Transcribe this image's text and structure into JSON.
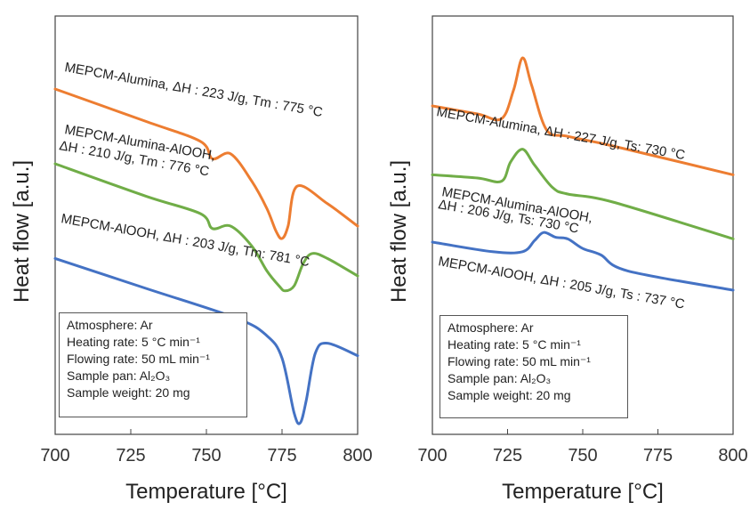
{
  "chart_data": [
    {
      "type": "line",
      "xlabel": "Temperature [°C]",
      "ylabel": "Heat flow [a.u.]",
      "xlim": [
        700,
        800
      ],
      "xticks": [
        "700",
        "725",
        "750",
        "775",
        "800"
      ],
      "grid": false,
      "series": [
        {
          "name": "MEPCM-Alumina, ΔH : 223 J/g, Tm : 775 °C",
          "color": "#ED7D31",
          "x": [
            700,
            730,
            748,
            752,
            758,
            765,
            770,
            773,
            775,
            777,
            780,
            790,
            800
          ],
          "y": [
            1.0,
            0.87,
            0.79,
            0.72,
            0.74,
            0.63,
            0.52,
            0.43,
            0.4,
            0.45,
            0.61,
            0.54,
            0.45
          ]
        },
        {
          "name": "MEPCM-Alumina-AlOOH, ΔH : 210 J/g, Tm : 776 °C",
          "color": "#70AD47",
          "x": [
            700,
            730,
            748,
            752,
            758,
            765,
            770,
            774,
            776,
            779,
            782,
            785,
            790,
            800
          ],
          "y": [
            0.7,
            0.57,
            0.5,
            0.44,
            0.45,
            0.37,
            0.27,
            0.21,
            0.19,
            0.21,
            0.3,
            0.34,
            0.32,
            0.25
          ]
        },
        {
          "name": "MEPCM-AlOOH, ΔH : 203 J/g, Tm: 781 °C",
          "color": "#4472C4",
          "x": [
            700,
            730,
            760,
            770,
            775,
            779,
            781,
            783,
            786,
            790,
            800
          ],
          "y": [
            0.32,
            0.2,
            0.08,
            0.01,
            -0.08,
            -0.3,
            -0.34,
            -0.25,
            -0.06,
            -0.02,
            -0.07
          ]
        }
      ],
      "annotations": [
        {
          "text": "MEPCM-Alumina,  ΔH : 223 J/g, Tm : 775 °C"
        },
        {
          "text": "MEPCM-Alumina-AlOOH,"
        },
        {
          "text": "ΔH : 210 J/g, Tm : 776 °C"
        },
        {
          "text": "MEPCM-AlOOH,  ΔH : 203 J/g, Tm: 781  °C"
        }
      ]
    },
    {
      "type": "line",
      "xlabel": "Temperature [°C]",
      "ylabel": "Heat flow [a.u.]",
      "xlim": [
        700,
        800
      ],
      "xticks": [
        "700",
        "725",
        "750",
        "775",
        "800"
      ],
      "grid": false,
      "series": [
        {
          "name": "MEPCM-Alumina, ΔH : 227 J/g, Ts : 730 °C",
          "color": "#ED7D31",
          "x": [
            700,
            715,
            723,
            727,
            730,
            733,
            738,
            745,
            760,
            800
          ],
          "y": [
            0.95,
            0.9,
            0.87,
            1.05,
            1.25,
            1.08,
            0.8,
            0.76,
            0.7,
            0.52
          ]
        },
        {
          "name": "MEPCM-Alumina-AlOOH, ΔH : 206 J/g, Ts : 730 °C",
          "color": "#70AD47",
          "x": [
            700,
            715,
            723,
            726,
            730,
            734,
            740,
            745,
            760,
            800
          ],
          "y": [
            0.52,
            0.5,
            0.48,
            0.6,
            0.68,
            0.58,
            0.44,
            0.4,
            0.35,
            0.12
          ]
        },
        {
          "name": "MEPCM-AlOOH, ΔH : 205 J/g, Ts : 737 °C",
          "color": "#4472C4",
          "x": [
            700,
            720,
            730,
            734,
            737,
            741,
            745,
            750,
            756,
            765,
            800
          ],
          "y": [
            0.1,
            0.04,
            0.04,
            0.11,
            0.16,
            0.13,
            0.12,
            0.06,
            0.02,
            -0.08,
            -0.2
          ]
        }
      ],
      "annotations": [
        {
          "text": "MEPCM-Alumina,  ΔH : 227 J/g, Ts: 730 °C"
        },
        {
          "text": "MEPCM-Alumina-AlOOH,"
        },
        {
          "text": "ΔH : 206 J/g, Ts: 730  °C"
        },
        {
          "text": "MEPCM-AlOOH, ΔH : 205 J/g, Ts : 737 °C"
        }
      ]
    }
  ],
  "info_box": {
    "atmosphere": "Atmosphere:  Ar",
    "heating_rate": "Heating rate:  5 °C min⁻¹",
    "flowing_rate": "Flowing rate:  50 mL min⁻¹",
    "sample_pan": "Sample pan:  Al₂O₃",
    "sample_weight": "Sample weight:  20 mg"
  }
}
